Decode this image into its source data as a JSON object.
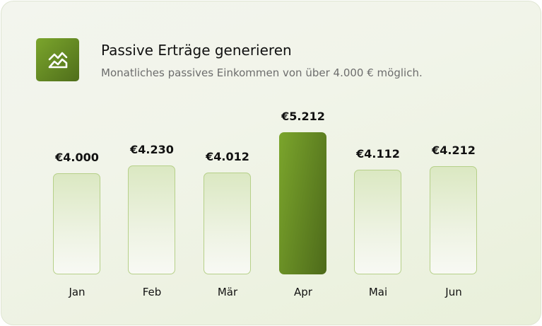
{
  "header": {
    "icon": "area-chart-icon",
    "title": "Passive Erträge generieren",
    "subtitle": "Monatliches passives Einkommen von über 4.000 € möglich."
  },
  "colors": {
    "accent": "#6b9125",
    "bar_border": "#b6d089"
  },
  "chart_data": {
    "type": "bar",
    "categories": [
      "Jan",
      "Feb",
      "Mär",
      "Apr",
      "Mai",
      "Jun"
    ],
    "values": [
      4000,
      4230,
      4012,
      5212,
      4112,
      4212
    ],
    "value_labels": [
      "€4.000",
      "€4.230",
      "€4.012",
      "€5.212",
      "€4.112",
      "€4.212"
    ],
    "highlighted": "Apr",
    "grid": false
  }
}
